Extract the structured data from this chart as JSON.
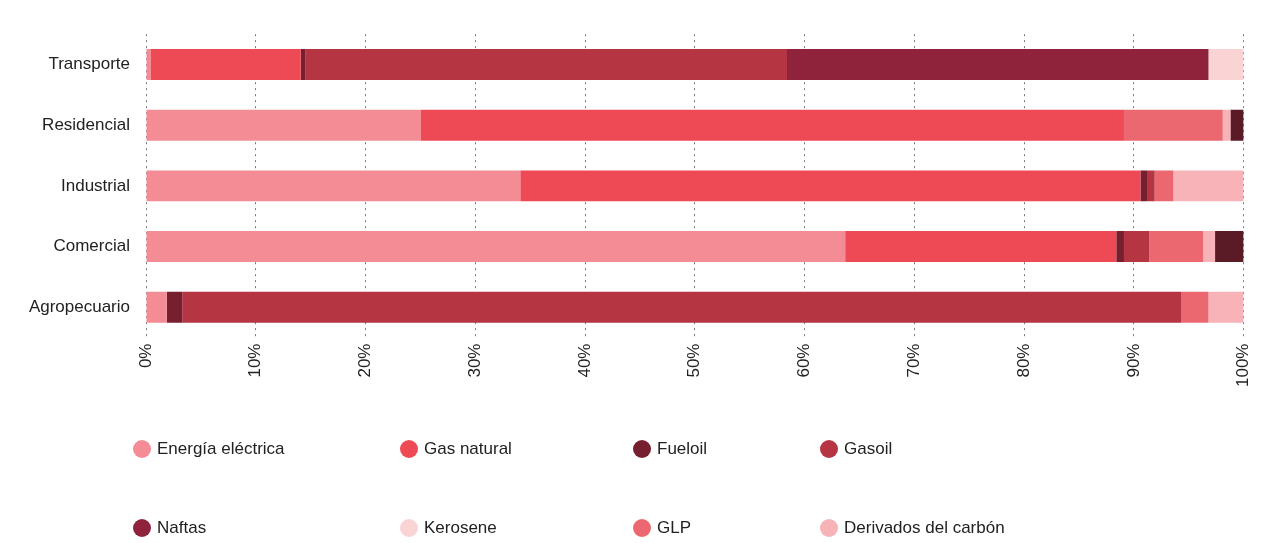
{
  "chart_data": {
    "type": "bar",
    "orientation": "horizontal",
    "stacked": true,
    "categories": [
      "Transporte",
      "Residencial",
      "Industrial",
      "Comercial",
      "Agropecuario"
    ],
    "series": [
      {
        "name": "Energía eléctrica",
        "color": "#f48c96",
        "values": [
          0.4,
          25.0,
          34.1,
          63.7,
          1.9
        ]
      },
      {
        "name": "Gas natural",
        "color": "#ee4a55",
        "values": [
          13.7,
          64.1,
          56.5,
          24.7,
          0
        ]
      },
      {
        "name": "Fueloil",
        "color": "#761f2f",
        "values": [
          0.4,
          0,
          0.6,
          0.7,
          1.4
        ]
      },
      {
        "name": "Gasoil",
        "color": "#b53543",
        "values": [
          43.9,
          0,
          0.7,
          2.3,
          91.0
        ]
      },
      {
        "name": "Naftas",
        "color": "#8f233c",
        "values": [
          38.4,
          0,
          0,
          0,
          0
        ]
      },
      {
        "name": "Kerosene",
        "color": "#fad4d4",
        "values": [
          3.2,
          0,
          0,
          0,
          0
        ]
      },
      {
        "name": "GLP",
        "color": "#ec6870",
        "values": [
          0,
          9.0,
          1.7,
          4.9,
          2.5
        ]
      },
      {
        "name": "Derivados del carbón",
        "color": "#f8b3b8",
        "values": [
          0,
          0.7,
          6.4,
          1.1,
          3.2
        ]
      },
      {
        "color": "#5a1a26",
        "values": [
          0,
          1.2,
          0,
          2.6,
          0
        ]
      }
    ],
    "xlim": [
      0,
      100
    ],
    "xticks": [
      {
        "value": 0,
        "label": "0%"
      },
      {
        "value": 10,
        "label": "10%"
      },
      {
        "value": 20,
        "label": "20%"
      },
      {
        "value": 30,
        "label": "30%"
      },
      {
        "value": 40,
        "label": "40%"
      },
      {
        "value": 50,
        "label": "50%"
      },
      {
        "value": 60,
        "label": "60%"
      },
      {
        "value": 70,
        "label": "70%"
      },
      {
        "value": 80,
        "label": "80%"
      },
      {
        "value": 90,
        "label": "90%"
      },
      {
        "value": 100,
        "label": "100%"
      }
    ],
    "grid": "x",
    "legend": "bottom"
  }
}
